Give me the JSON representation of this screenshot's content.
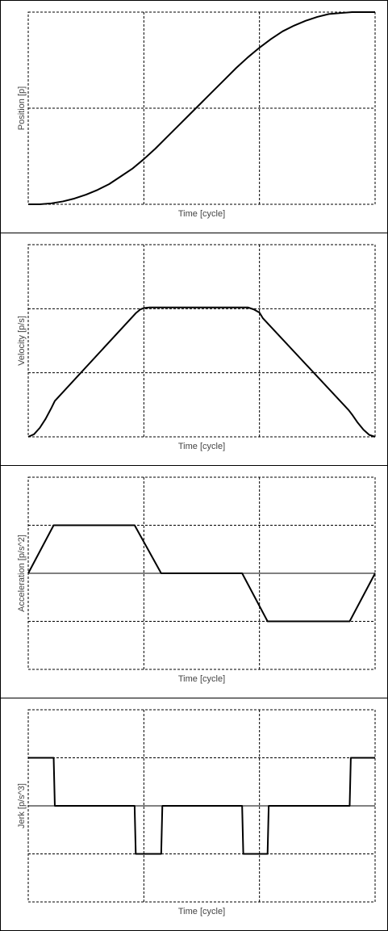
{
  "chart_data": [
    {
      "type": "line",
      "xlabel": "Time [cycle]",
      "ylabel": "Position [p]",
      "xlim": [
        0,
        3
      ],
      "ylim": [
        0,
        2
      ],
      "grid": true,
      "zero_line": false,
      "series": [
        {
          "x": [
            0,
            0.1,
            0.2,
            0.3,
            0.4,
            0.5,
            0.6,
            0.7,
            0.8,
            0.9,
            1.0,
            1.1,
            1.2,
            1.3,
            1.4,
            1.5,
            1.6,
            1.7,
            1.8,
            1.9,
            2.0,
            2.1,
            2.2,
            2.3,
            2.4,
            2.5,
            2.6,
            2.7,
            2.8,
            2.9,
            3.0
          ],
          "values": [
            0.0,
            0.0,
            0.01,
            0.03,
            0.06,
            0.1,
            0.15,
            0.21,
            0.29,
            0.37,
            0.47,
            0.58,
            0.7,
            0.82,
            0.94,
            1.06,
            1.18,
            1.3,
            1.42,
            1.53,
            1.63,
            1.72,
            1.8,
            1.86,
            1.91,
            1.95,
            1.98,
            1.99,
            2.0,
            2.0,
            2.0
          ]
        }
      ]
    },
    {
      "type": "line",
      "xlabel": "Time [cycle]",
      "ylabel": "Velocity [p/s]",
      "xlim": [
        0,
        3
      ],
      "ylim": [
        0,
        3
      ],
      "grid": true,
      "zero_line": false,
      "series": [
        {
          "x": [
            0,
            0.05,
            0.1,
            0.15,
            0.2,
            0.23,
            0.93,
            0.97,
            1.0,
            1.05,
            1.1,
            1.15,
            1.2,
            1.85,
            1.9,
            1.95,
            2.0,
            2.03,
            2.77,
            2.8,
            2.85,
            2.9,
            2.95,
            3.0
          ],
          "values": [
            0.0,
            0.04,
            0.14,
            0.28,
            0.45,
            0.56,
            1.93,
            1.99,
            2.01,
            2.02,
            2.02,
            2.02,
            2.02,
            2.02,
            2.02,
            1.99,
            1.94,
            1.85,
            0.42,
            0.35,
            0.22,
            0.11,
            0.03,
            0.0
          ]
        }
      ]
    },
    {
      "type": "line",
      "xlabel": "Time [cycle]",
      "ylabel": "Acceleration [p/s^2]",
      "xlim": [
        0,
        3
      ],
      "ylim": [
        -2,
        2
      ],
      "grid": true,
      "zero_line": true,
      "series": [
        {
          "x": [
            0,
            0.22,
            0.92,
            1.15,
            1.85,
            2.07,
            2.78,
            3.0
          ],
          "values": [
            0,
            1,
            1,
            0,
            0,
            -1,
            -1,
            0
          ]
        }
      ]
    },
    {
      "type": "line",
      "xlabel": "Time [cycle]",
      "ylabel": "Jerk [p/s^3]",
      "xlim": [
        0,
        3
      ],
      "ylim": [
        -2,
        2
      ],
      "grid": true,
      "zero_line": true,
      "series": [
        {
          "x": [
            0,
            0.22,
            0.23,
            0.92,
            0.93,
            1.15,
            1.16,
            1.85,
            1.86,
            2.07,
            2.08,
            2.78,
            2.79,
            3.0
          ],
          "values": [
            1,
            1,
            0,
            0,
            -1,
            -1,
            0,
            0,
            -1,
            -1,
            0,
            0,
            1,
            1
          ]
        }
      ]
    }
  ]
}
